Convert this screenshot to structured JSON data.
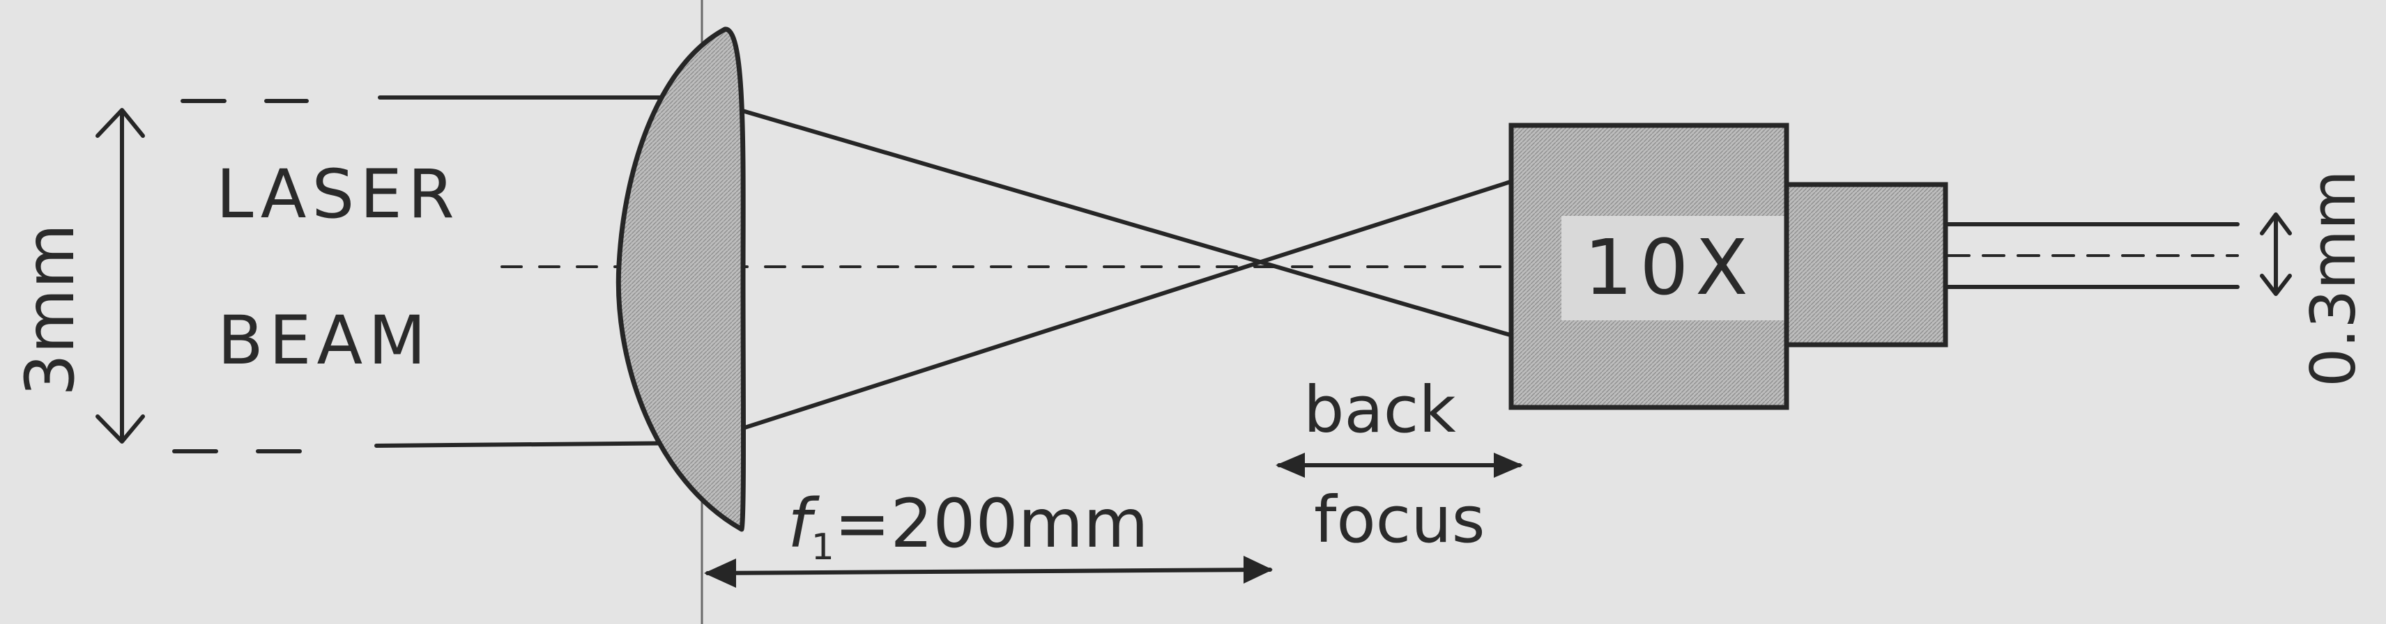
{
  "labels": {
    "beam_line1": "LASER",
    "beam_line2": "BEAM",
    "input_diameter": "3mm",
    "output_diameter": "0.3mm",
    "objective": "10X",
    "back_focus_line1": "back",
    "back_focus_line2": "focus",
    "focal_symbol": "f",
    "focal_subscript": "1",
    "focal_value": "=200mm"
  },
  "colors": {
    "paper": "#e4e4e4",
    "ink": "#262626",
    "shading": "#b5b5b5"
  }
}
